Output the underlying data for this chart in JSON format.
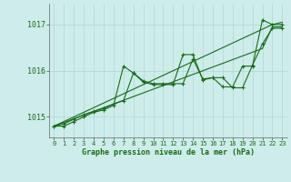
{
  "xlabel": "Graphe pression niveau de la mer (hPa)",
  "x": [
    0,
    1,
    2,
    3,
    4,
    5,
    6,
    7,
    8,
    9,
    10,
    11,
    12,
    13,
    14,
    15,
    16,
    17,
    18,
    19,
    20,
    21,
    22,
    23
  ],
  "s1": [
    1014.8,
    1014.8,
    1014.9,
    1015.0,
    1015.1,
    1015.15,
    1015.25,
    1016.1,
    1015.95,
    1015.75,
    1015.7,
    1015.7,
    1015.7,
    1016.35,
    1016.35,
    1015.8,
    1015.85,
    1015.65,
    1015.65,
    1016.1,
    1016.1,
    1017.1,
    1017.0,
    1017.0
  ],
  "s2": [
    1014.8,
    1014.85,
    1014.95,
    1015.05,
    1015.12,
    1015.18,
    1015.28,
    1015.35,
    1015.95,
    1015.78,
    1015.72,
    1015.72,
    1015.72,
    1015.72,
    1016.25,
    1015.82,
    1015.85,
    1015.85,
    1015.63,
    1015.63,
    1016.12,
    1016.58,
    1016.92,
    1016.92
  ],
  "t1": [
    1014.8,
    1014.9,
    1015.0,
    1015.1,
    1015.2,
    1015.3,
    1015.4,
    1015.5,
    1015.6,
    1015.7,
    1015.8,
    1015.9,
    1016.0,
    1016.1,
    1016.2,
    1016.3,
    1016.4,
    1016.5,
    1016.6,
    1016.7,
    1016.8,
    1016.9,
    1017.0,
    1017.05
  ],
  "t2": [
    1014.8,
    1014.88,
    1014.96,
    1015.04,
    1015.12,
    1015.2,
    1015.28,
    1015.36,
    1015.44,
    1015.52,
    1015.6,
    1015.68,
    1015.76,
    1015.84,
    1015.92,
    1016.0,
    1016.08,
    1016.16,
    1016.24,
    1016.32,
    1016.4,
    1016.48,
    1016.95,
    1016.95
  ],
  "background_color": "#cdecea",
  "grid_color": "#aed8d5",
  "line_color": "#1a6b1a",
  "tick_color": "#1a6b1a",
  "xlabel_color": "#1a6b1a",
  "ylim": [
    1014.55,
    1017.45
  ],
  "yticks": [
    1015,
    1016,
    1017
  ],
  "xlim": [
    -0.5,
    23.5
  ]
}
